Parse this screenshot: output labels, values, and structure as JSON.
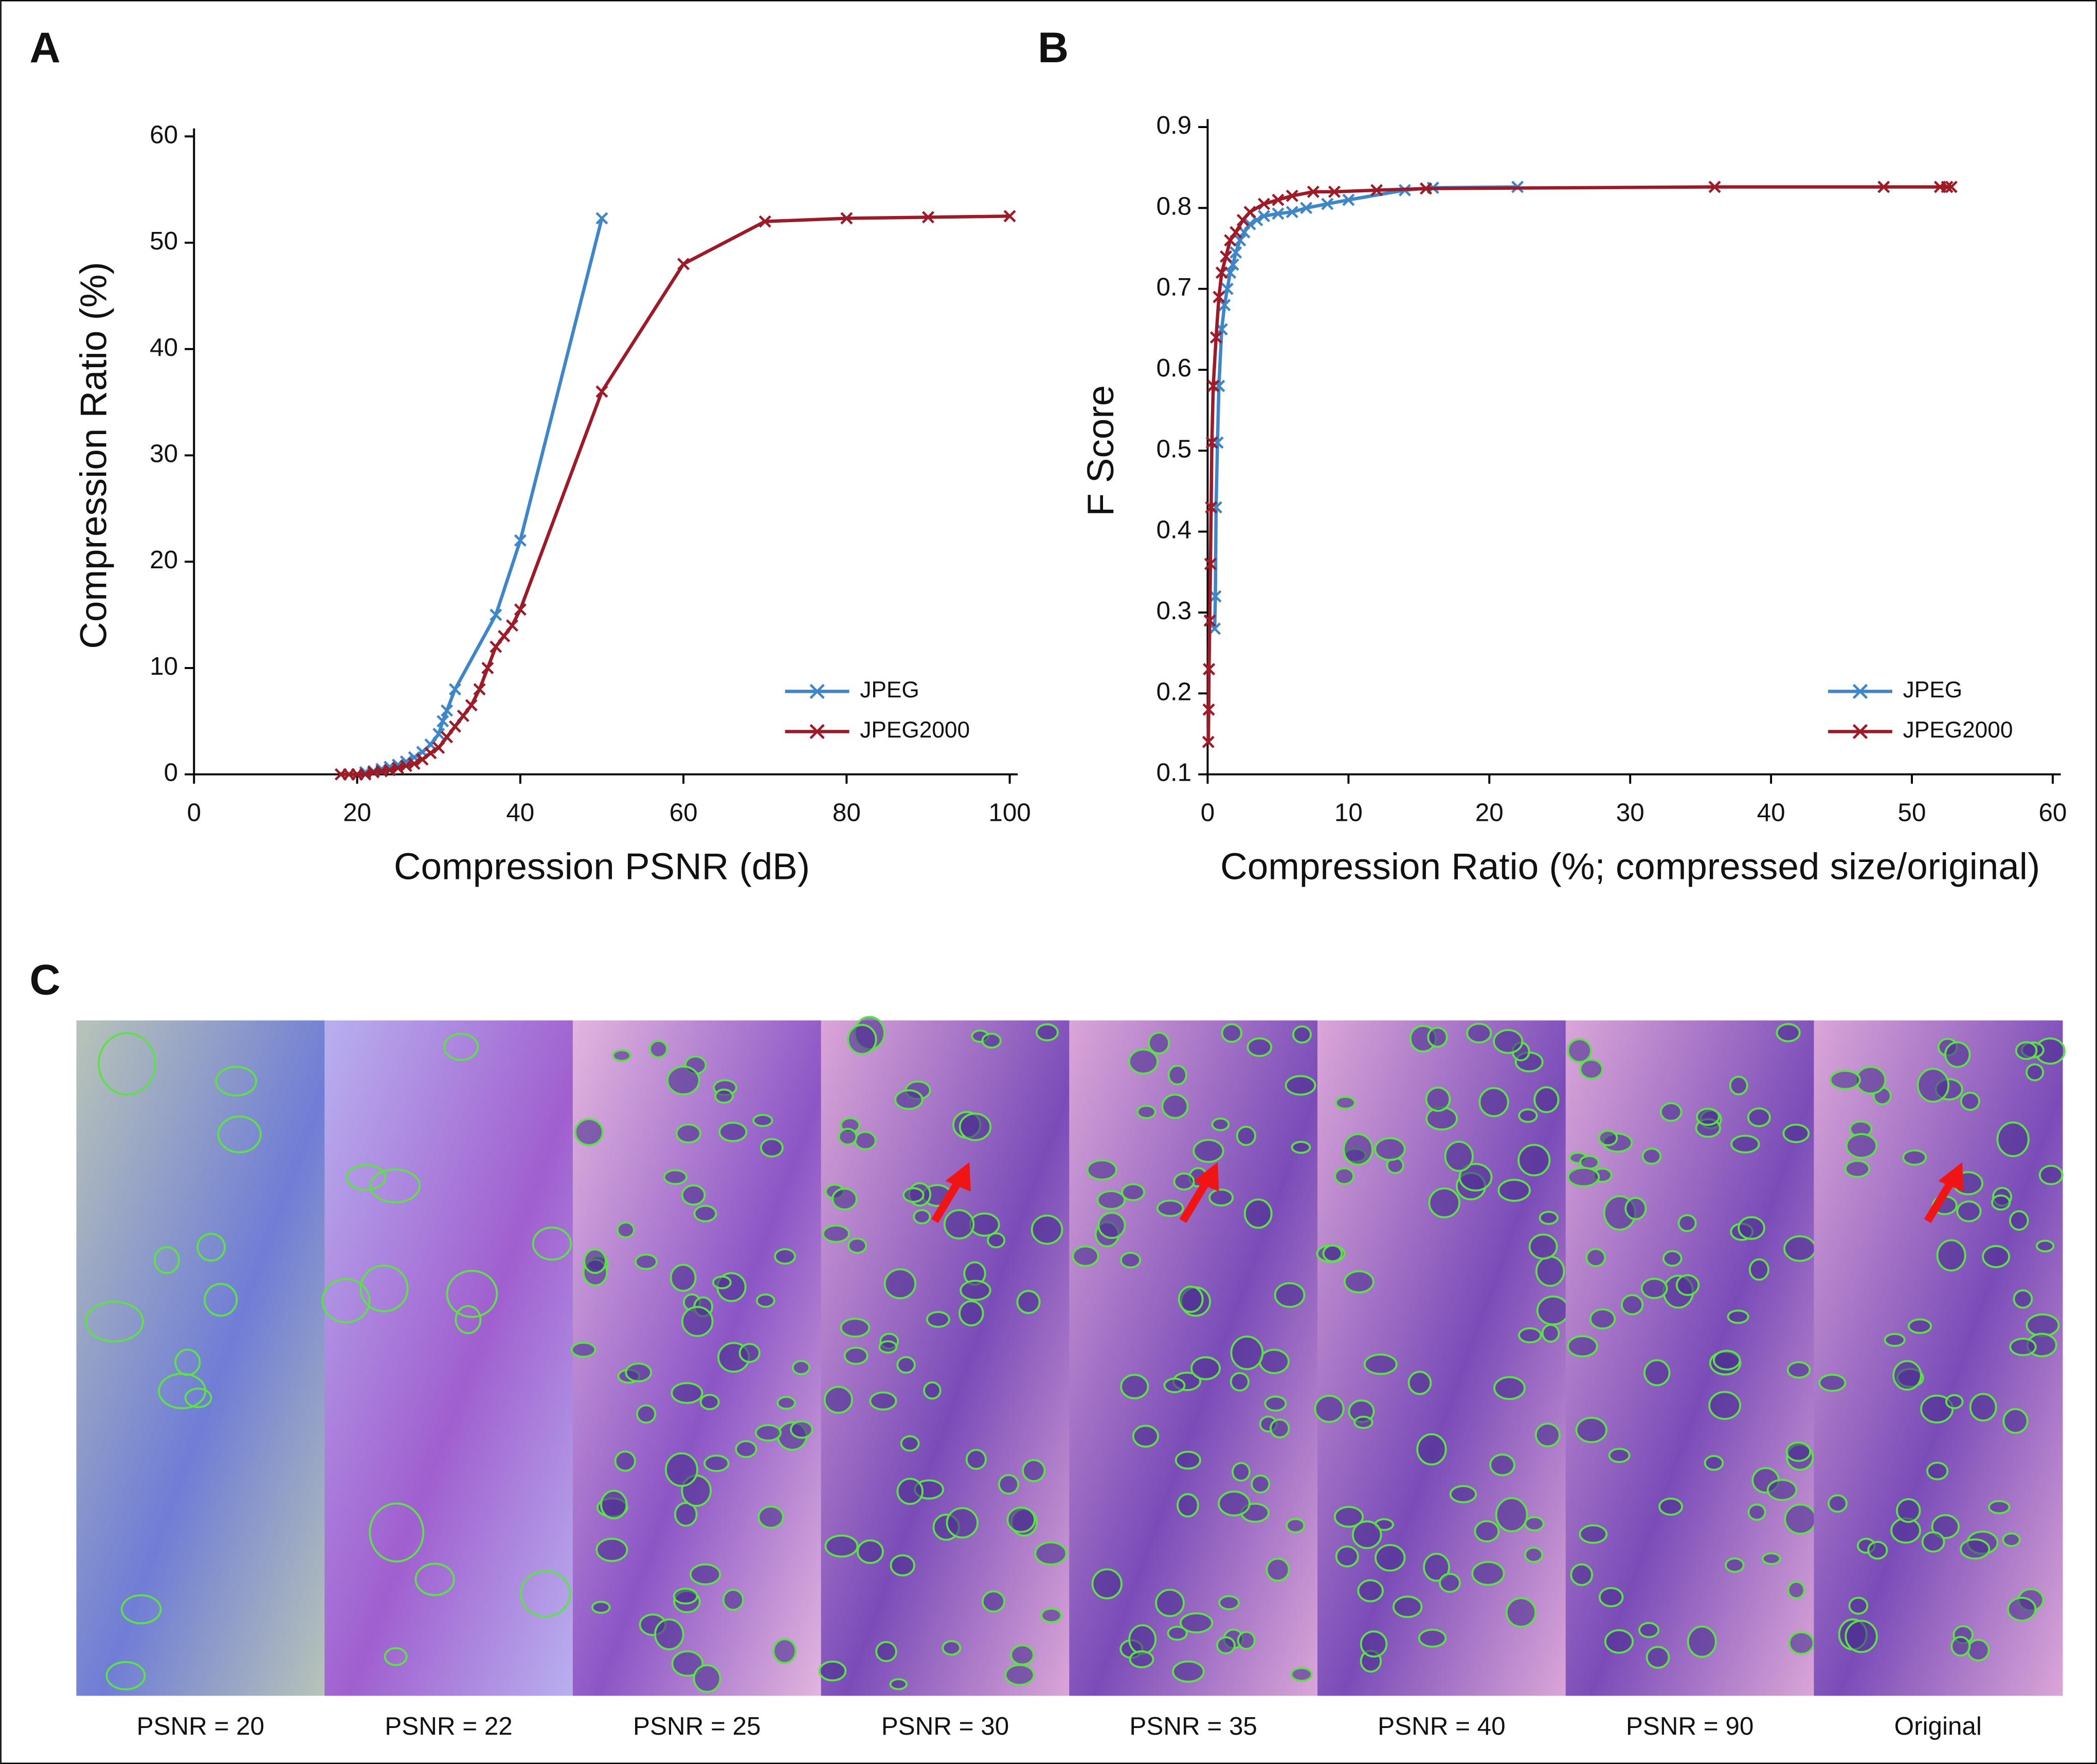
{
  "chart_data": [
    {
      "type": "line",
      "panel": "A",
      "xlabel": "Compression PSNR (dB)",
      "ylabel": "Compression Ratio (%)",
      "xlim": [
        0,
        100
      ],
      "xticks": [
        0,
        20,
        40,
        60,
        80,
        100
      ],
      "ylim": [
        0,
        60
      ],
      "yticks": [
        0,
        10,
        20,
        30,
        40,
        50,
        60
      ],
      "legend": "lower right",
      "series": [
        {
          "name": "JPEG",
          "color": "#3f86c8",
          "x": [
            20,
            21,
            22,
            23,
            24,
            25,
            26,
            27,
            28,
            29,
            30,
            30.5,
            31,
            32,
            37,
            40,
            50
          ],
          "values": [
            0,
            0.2,
            0.3,
            0.5,
            0.7,
            0.9,
            1.2,
            1.6,
            2.1,
            2.8,
            3.8,
            5,
            6,
            8,
            15,
            22,
            52.3
          ]
        },
        {
          "name": "JPEG2000",
          "color": "#9b1c28",
          "x": [
            18,
            19,
            20,
            21,
            22,
            23,
            24,
            25,
            26,
            27,
            28,
            29,
            30,
            31,
            32,
            33,
            34,
            35,
            36,
            37,
            38,
            39,
            40,
            50,
            60,
            70,
            80,
            90,
            100
          ],
          "values": [
            0,
            0,
            0,
            0,
            0.2,
            0.3,
            0.4,
            0.6,
            0.8,
            1,
            1.4,
            2,
            2.5,
            3.5,
            4.5,
            5.5,
            6.5,
            8,
            10,
            12,
            13,
            14,
            15.5,
            36,
            48,
            52,
            52.3,
            52.4,
            52.5
          ]
        }
      ]
    },
    {
      "type": "line",
      "panel": "B",
      "xlabel": "Compression Ratio (%; compressed size/original)",
      "ylabel": "F Score",
      "xlim": [
        0,
        60
      ],
      "xticks": [
        0,
        10,
        20,
        30,
        40,
        50,
        60
      ],
      "ylim": [
        0.1,
        0.9
      ],
      "yticks": [
        0.1,
        0.2,
        0.3,
        0.4,
        0.5,
        0.6,
        0.7,
        0.8,
        0.9
      ],
      "legend": "lower right",
      "series": [
        {
          "name": "JPEG",
          "color": "#3f86c8",
          "x": [
            0.5,
            0.55,
            0.6,
            0.7,
            0.8,
            1,
            1.2,
            1.4,
            1.6,
            1.8,
            2,
            2.3,
            2.6,
            3,
            3.5,
            4,
            5,
            6,
            7,
            8.5,
            10,
            14,
            16,
            22
          ],
          "values": [
            0.28,
            0.32,
            0.43,
            0.51,
            0.58,
            0.65,
            0.68,
            0.7,
            0.72,
            0.73,
            0.745,
            0.76,
            0.77,
            0.78,
            0.785,
            0.79,
            0.793,
            0.795,
            0.8,
            0.805,
            0.81,
            0.822,
            0.825,
            0.826
          ]
        },
        {
          "name": "JPEG2000",
          "color": "#9b1c28",
          "x": [
            0.05,
            0.08,
            0.1,
            0.15,
            0.2,
            0.25,
            0.3,
            0.4,
            0.6,
            0.8,
            1,
            1.3,
            1.6,
            2,
            2.5,
            3,
            4,
            5,
            6,
            7.5,
            9,
            12,
            15.5,
            36,
            48,
            52,
            52.5,
            52.8
          ],
          "values": [
            0.14,
            0.18,
            0.23,
            0.29,
            0.36,
            0.43,
            0.51,
            0.58,
            0.64,
            0.69,
            0.72,
            0.74,
            0.76,
            0.77,
            0.785,
            0.795,
            0.805,
            0.81,
            0.815,
            0.82,
            0.82,
            0.822,
            0.824,
            0.826,
            0.826,
            0.826,
            0.826,
            0.826
          ]
        }
      ]
    }
  ],
  "image_panel": {
    "panel": "C",
    "labels": [
      "PSNR = 20",
      "PSNR = 22",
      "PSNR = 25",
      "PSNR = 30",
      "PSNR = 35",
      "PSNR = 40",
      "PSNR = 90",
      "Original"
    ]
  }
}
